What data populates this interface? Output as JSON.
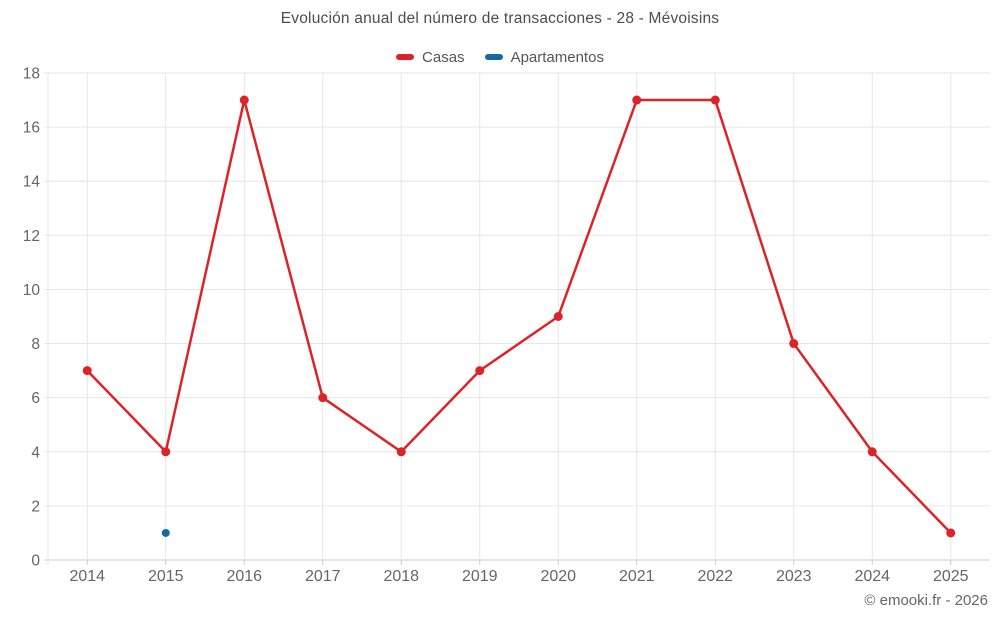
{
  "chart_data": {
    "type": "line",
    "title": "Evolución anual del número de transacciones - 28 - Mévoisins",
    "x": [
      2014,
      2015,
      2016,
      2017,
      2018,
      2019,
      2020,
      2021,
      2022,
      2023,
      2024,
      2025
    ],
    "series": [
      {
        "name": "Casas",
        "color": "#dc2428",
        "values": [
          7,
          4,
          17,
          6,
          4,
          7,
          9,
          17,
          17,
          8,
          4,
          1
        ],
        "marker_radius": 4.5,
        "line_width": 2.5
      },
      {
        "name": "Apartamentos",
        "color": "#15699f",
        "values": [
          null,
          1,
          null,
          null,
          null,
          null,
          null,
          null,
          null,
          null,
          null,
          null
        ],
        "marker_radius": 4,
        "line_width": 2.5
      }
    ],
    "ylim": [
      0,
      18
    ],
    "ytick_step": 2,
    "yticks": [
      0,
      2,
      4,
      6,
      8,
      10,
      12,
      14,
      16,
      18
    ],
    "grid": true,
    "legend_position": "top",
    "xlabel": "",
    "ylabel": ""
  },
  "colors": {
    "grid": "#e6e6e6",
    "axis": "#cccccc",
    "tick_label": "#666666",
    "title": "#4d4d4d",
    "legend_text": "#555555"
  },
  "footer": {
    "copyright": "© emooki.fr - 2026"
  }
}
